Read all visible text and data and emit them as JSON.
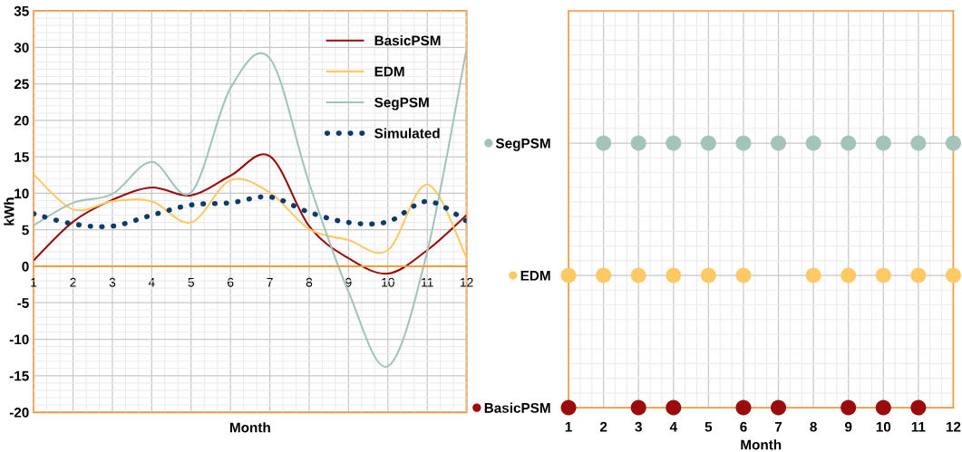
{
  "chart_data": [
    {
      "type": "line",
      "x": [
        1,
        2,
        3,
        4,
        5,
        6,
        7,
        8,
        9,
        10,
        11,
        12
      ],
      "xlim": [
        1,
        12
      ],
      "xticks": [
        1,
        2,
        3,
        4,
        5,
        6,
        7,
        8,
        9,
        10,
        11,
        12
      ],
      "ylim": [
        -20,
        35
      ],
      "yticks": [
        -20,
        -15,
        -10,
        -5,
        0,
        5,
        10,
        15,
        20,
        25,
        30,
        35
      ],
      "xlabel": "Month",
      "ylabel": "kWh",
      "grid": true,
      "legend": "top right",
      "marker": "none",
      "series": [
        {
          "name": "BasicPSM",
          "color": "#9b0b0b",
          "line_style": "solid",
          "values": [
            0.8,
            6.1,
            9.1,
            10.8,
            9.7,
            12.4,
            15.1,
            5.5,
            1.1,
            -1.0,
            2.2,
            7.0
          ]
        },
        {
          "name": "EDM",
          "color": "#ffc966",
          "line_style": "solid",
          "values": [
            12.6,
            7.8,
            8.9,
            8.9,
            6.0,
            11.8,
            10.1,
            5.1,
            3.6,
            2.2,
            11.2,
            1.2
          ]
        },
        {
          "name": "SegPSM",
          "color": "#a5c4b9",
          "line_style": "solid",
          "values": [
            5.6,
            8.7,
            9.9,
            14.3,
            10.1,
            24.4,
            28.5,
            11.4,
            -3.5,
            -13.7,
            2.0,
            29.8
          ]
        },
        {
          "name": "Simulated",
          "color": "#0c3b6e",
          "line_style": "dotted",
          "values": [
            7.2,
            5.8,
            5.5,
            7.0,
            8.4,
            8.7,
            9.5,
            7.4,
            6.0,
            6.1,
            8.9,
            6.2
          ]
        }
      ]
    },
    {
      "type": "scatter",
      "orientation": "horizontal",
      "categories": [
        "SegPSM",
        "EDM",
        "BasicPSM"
      ],
      "xlim": [
        1,
        12
      ],
      "xticks": [
        1,
        2,
        3,
        4,
        5,
        6,
        7,
        8,
        9,
        10,
        11,
        12
      ],
      "xlabel": "Month",
      "grid": true,
      "marker": "circle",
      "series": [
        {
          "colors": [
            "#a5c4b9",
            "#ffc966",
            "#9b0b0b"
          ],
          "values": [
            null,
            1,
            1
          ]
        },
        {
          "colors": [
            "#a5c4b9",
            "#ffc966",
            "#9b0b0b"
          ],
          "values": [
            2,
            2,
            null
          ]
        },
        {
          "colors": [
            "#a5c4b9",
            "#ffc966",
            "#9b0b0b"
          ],
          "values": [
            3,
            3,
            3
          ]
        },
        {
          "colors": [
            "#a5c4b9",
            "#ffc966",
            "#9b0b0b"
          ],
          "values": [
            4,
            4,
            4
          ]
        },
        {
          "colors": [
            "#a5c4b9",
            "#ffc966",
            "#9b0b0b"
          ],
          "values": [
            5,
            5,
            null
          ]
        },
        {
          "colors": [
            "#a5c4b9",
            "#ffc966",
            "#9b0b0b"
          ],
          "values": [
            6,
            6,
            6
          ]
        },
        {
          "colors": [
            "#a5c4b9",
            "#ffc966",
            "#9b0b0b"
          ],
          "values": [
            7,
            null,
            7
          ]
        },
        {
          "colors": [
            "#a5c4b9",
            "#ffc966",
            "#9b0b0b"
          ],
          "values": [
            8,
            8,
            null
          ]
        },
        {
          "colors": [
            "#a5c4b9",
            "#ffc966",
            "#9b0b0b"
          ],
          "values": [
            9,
            9,
            9
          ]
        },
        {
          "colors": [
            "#a5c4b9",
            "#ffc966",
            "#9b0b0b"
          ],
          "values": [
            10,
            10,
            10
          ]
        },
        {
          "colors": [
            "#a5c4b9",
            "#ffc966",
            "#9b0b0b"
          ],
          "values": [
            11,
            11,
            11
          ]
        },
        {
          "colors": [
            "#a5c4b9",
            "#ffc966",
            "#9b0b0b"
          ],
          "values": [
            12,
            12,
            null
          ]
        }
      ]
    }
  ]
}
